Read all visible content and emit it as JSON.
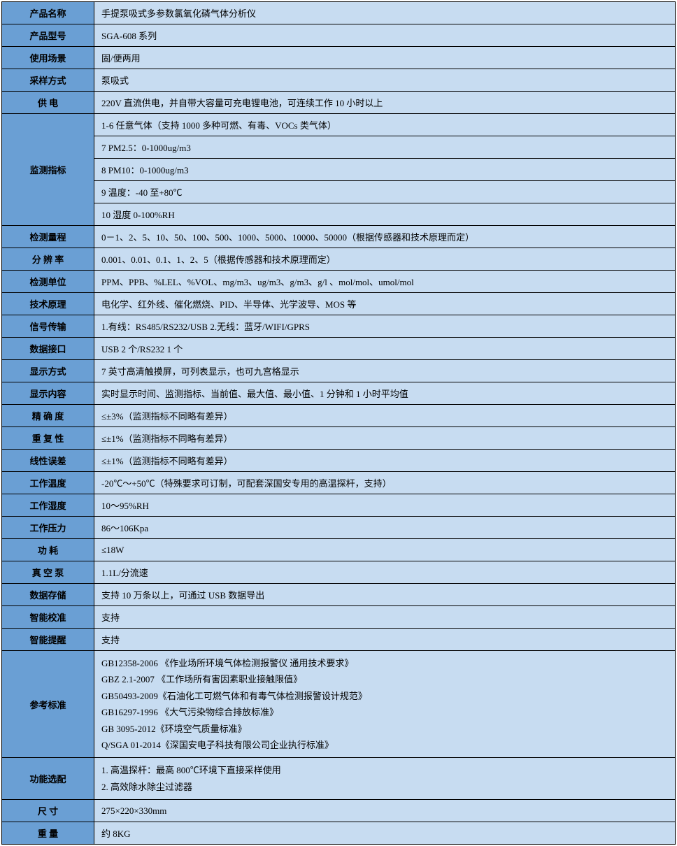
{
  "table": {
    "label_bg": "#6a9fd4",
    "value_bg": "#c7dcf1",
    "border_color": "#000000",
    "font_size": 13,
    "label_width": 132,
    "rows": [
      {
        "label": "产品名称",
        "value": "手提泵吸式多参数氯氧化磷气体分析仪"
      },
      {
        "label": "产品型号",
        "value": "SGA-608 系列"
      },
      {
        "label": "使用场景",
        "value": "固/便两用"
      },
      {
        "label": "采样方式",
        "value": "泵吸式"
      },
      {
        "label": "供   电",
        "value": "220V 直流供电，并自带大容量可充电锂电池，可连续工作 10 小时以上"
      },
      {
        "label": "监测指标",
        "values": [
          "1-6 任意气体（支持 1000 多种可燃、有毒、VOCs 类气体）",
          "7 PM2.5：0-1000ug/m3",
          "8 PM10：0-1000ug/m3",
          "9 温度：-40 至+80℃",
          "10 湿度 0-100%RH"
        ]
      },
      {
        "label": "检测量程",
        "value": "0－1、2、5、10、50、100、500、1000、5000、10000、50000（根据传感器和技术原理而定）"
      },
      {
        "label": "分 辨 率",
        "value": "0.001、0.01、0.1、1、2、5（根据传感器和技术原理而定）"
      },
      {
        "label": "检测单位",
        "value": "PPM、PPB、%LEL、%VOL、mg/m3、ug/m3、g/m3、g/l 、mol/mol、umol/mol"
      },
      {
        "label": "技术原理",
        "value": "电化学、红外线、催化燃烧、PID、半导体、光学波导、MOS 等"
      },
      {
        "label": "信号传输",
        "value": "1.有线：RS485/RS232/USB    2.无线：蓝牙/WIFI/GPRS"
      },
      {
        "label": "数据接口",
        "value": "USB 2 个/RS232 1 个"
      },
      {
        "label": "显示方式",
        "value": "7 英寸高清触摸屏，可列表显示，也可九宫格显示"
      },
      {
        "label": "显示内容",
        "value": "实时显示时间、监测指标、当前值、最大值、最小值、1 分钟和 1 小时平均值"
      },
      {
        "label": "精 确 度",
        "value": "≤±3%（监测指标不同略有差异）"
      },
      {
        "label": "重 复 性",
        "value": "≤±1%（监测指标不同略有差异）"
      },
      {
        "label": "线性误差",
        "value": "≤±1%（监测指标不同略有差异）"
      },
      {
        "label": "工作温度",
        "value": "-20℃～+50℃（特殊要求可订制，可配套深国安专用的高温探杆，支持）"
      },
      {
        "label": "工作湿度",
        "value": "10～95%RH"
      },
      {
        "label": "工作压力",
        "value": "86～106Kpa"
      },
      {
        "label": "功     耗",
        "value": "≤18W"
      },
      {
        "label": "真 空 泵",
        "value": "1.1L/分流速"
      },
      {
        "label": "数据存储",
        "value": "支持 10 万条以上，可通过 USB 数据导出"
      },
      {
        "label": "智能校准",
        "value": "支持"
      },
      {
        "label": "智能提醒",
        "value": "支持"
      },
      {
        "label": "参考标准",
        "values": [
          "GB12358-2006 《作业场所环境气体检测报警仪 通用技术要求》",
          "GBZ 2.1-2007 《工作场所有害因素职业接触限值》",
          "GB50493-2009《石油化工可燃气体和有毒气体检测报警设计规范》",
          "GB16297-1996 《大气污染物综合排放标准》",
          "GB 3095-2012《环境空气质量标准》",
          "Q/SGA 01-2014《深国安电子科技有限公司企业执行标准》"
        ]
      },
      {
        "label": "功能选配",
        "values": [
          "1.  高温探杆：最高 800℃环境下直接采样使用",
          "2.  高效除水除尘过滤器"
        ]
      },
      {
        "label": "尺     寸",
        "value": "275×220×330mm"
      },
      {
        "label": "重     量",
        "value": "约 8KG"
      }
    ]
  }
}
